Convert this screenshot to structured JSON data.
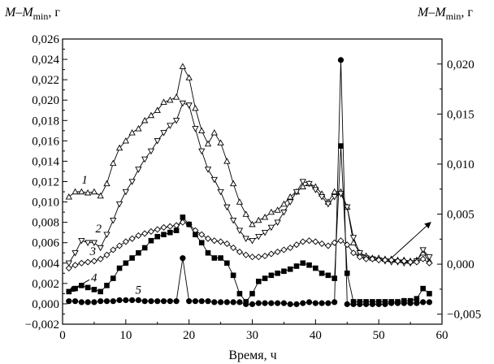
{
  "chart_data": {
    "type": "line",
    "xlabel": "Время, ч",
    "ylabel_left": {
      "main": "M–M",
      "sub": "min",
      "unit": ", г"
    },
    "ylabel_right": {
      "main": "M–M",
      "sub": "min",
      "unit": ", г"
    },
    "xlim": [
      0,
      60
    ],
    "ylim_left": [
      -0.002,
      0.026
    ],
    "ylim_right": [
      -0.006,
      0.0225
    ],
    "x_ticks": [
      "0",
      "10",
      "20",
      "30",
      "40",
      "50",
      "60"
    ],
    "y_ticks_left": [
      "−0,002",
      "0,000",
      "0,002",
      "0,004",
      "0,006",
      "0,008",
      "0,010",
      "0,012",
      "0,014",
      "0,016",
      "0,018",
      "0,020",
      "0,022",
      "0,024",
      "0,026"
    ],
    "y_ticks_right": [
      "−0,005",
      "0,000",
      "0,005",
      "0,010",
      "0,015",
      "0,020"
    ],
    "grid": false,
    "legend": "numbered labels next to curves",
    "series": [
      {
        "name": "1",
        "marker": "triangle-up",
        "axis": "left",
        "x": [
          1,
          2,
          3,
          4,
          5,
          6,
          7,
          8,
          9,
          10,
          11,
          12,
          13,
          14,
          15,
          16,
          17,
          18,
          19,
          20,
          21,
          22,
          23,
          24,
          25,
          26,
          27,
          28,
          29,
          30,
          31,
          32,
          33,
          34,
          35,
          36,
          37,
          38,
          39,
          40,
          41,
          42,
          43,
          44,
          45,
          46,
          47,
          48,
          49,
          50,
          51,
          52,
          53,
          54,
          55,
          56,
          57,
          58
        ],
        "y": [
          0.0105,
          0.011,
          0.011,
          0.0109,
          0.011,
          0.0106,
          0.0118,
          0.0138,
          0.0153,
          0.016,
          0.0168,
          0.0172,
          0.018,
          0.0185,
          0.019,
          0.0198,
          0.02,
          0.0203,
          0.0233,
          0.0222,
          0.0192,
          0.017,
          0.0157,
          0.0168,
          0.0158,
          0.014,
          0.0118,
          0.01,
          0.0088,
          0.0078,
          0.0082,
          0.0085,
          0.009,
          0.0092,
          0.0098,
          0.0105,
          0.011,
          0.0115,
          0.0118,
          0.0115,
          0.0108,
          0.01,
          0.011,
          0.011,
          0.0095,
          0.006,
          0.005,
          0.0047,
          0.0045,
          0.0045,
          0.0044,
          0.0044,
          0.0043,
          0.0043,
          0.0042,
          0.0043,
          0.005,
          0.0042
        ]
      },
      {
        "name": "2",
        "marker": "triangle-down",
        "axis": "left",
        "x": [
          1,
          2,
          3,
          4,
          5,
          6,
          7,
          8,
          9,
          10,
          11,
          12,
          13,
          14,
          15,
          16,
          17,
          18,
          19,
          20,
          21,
          22,
          23,
          24,
          25,
          26,
          27,
          28,
          29,
          30,
          31,
          32,
          33,
          34,
          35,
          36,
          37,
          38,
          39,
          40,
          41,
          42,
          43,
          44,
          45,
          46,
          47,
          48,
          49,
          50,
          51,
          52,
          53,
          54,
          55,
          56,
          57,
          58
        ],
        "y": [
          0.004,
          0.005,
          0.0062,
          0.006,
          0.006,
          0.0055,
          0.0068,
          0.0082,
          0.0098,
          0.011,
          0.012,
          0.0132,
          0.0142,
          0.015,
          0.016,
          0.0168,
          0.0175,
          0.018,
          0.0197,
          0.0195,
          0.0172,
          0.015,
          0.0132,
          0.0122,
          0.011,
          0.0095,
          0.0082,
          0.0072,
          0.0064,
          0.0062,
          0.0066,
          0.007,
          0.0075,
          0.008,
          0.009,
          0.01,
          0.011,
          0.012,
          0.0118,
          0.0112,
          0.0105,
          0.0098,
          0.0105,
          0.0108,
          0.0095,
          0.0065,
          0.005,
          0.0045,
          0.0044,
          0.0043,
          0.0042,
          0.0041,
          0.0041,
          0.004,
          0.004,
          0.0042,
          0.0053,
          0.0046
        ]
      },
      {
        "name": "3",
        "marker": "diamond",
        "axis": "left",
        "x": [
          1,
          2,
          3,
          4,
          5,
          6,
          7,
          8,
          9,
          10,
          11,
          12,
          13,
          14,
          15,
          16,
          17,
          18,
          19,
          20,
          21,
          22,
          23,
          24,
          25,
          26,
          27,
          28,
          29,
          30,
          31,
          32,
          33,
          34,
          35,
          36,
          37,
          38,
          39,
          40,
          41,
          42,
          43,
          44,
          45,
          46,
          47,
          48,
          49,
          50,
          51,
          52,
          53,
          54,
          55,
          56,
          57,
          58
        ],
        "y": [
          0.0035,
          0.0038,
          0.004,
          0.0041,
          0.0042,
          0.0044,
          0.0048,
          0.0053,
          0.0057,
          0.0061,
          0.0064,
          0.0067,
          0.0069,
          0.0071,
          0.0073,
          0.0075,
          0.0076,
          0.0077,
          0.008,
          0.0078,
          0.0072,
          0.0068,
          0.0064,
          0.0062,
          0.0061,
          0.0059,
          0.0055,
          0.0051,
          0.0048,
          0.0046,
          0.0046,
          0.0047,
          0.0049,
          0.0051,
          0.0053,
          0.0055,
          0.0058,
          0.0061,
          0.0062,
          0.0061,
          0.0059,
          0.0057,
          0.006,
          0.0062,
          0.0058,
          0.005,
          0.0046,
          0.0044,
          0.0044,
          0.0043,
          0.0043,
          0.0043,
          0.0042,
          0.0042,
          0.0041,
          0.0041,
          0.0044,
          0.004
        ]
      },
      {
        "name": "4",
        "marker": "square-filled",
        "axis": "left",
        "x": [
          1,
          2,
          3,
          4,
          5,
          6,
          7,
          8,
          9,
          10,
          11,
          12,
          13,
          14,
          15,
          16,
          17,
          18,
          19,
          20,
          21,
          22,
          23,
          24,
          25,
          26,
          27,
          28,
          29,
          30,
          31,
          32,
          33,
          34,
          35,
          36,
          37,
          38,
          39,
          40,
          41,
          42,
          43,
          44,
          45,
          46,
          47,
          48,
          49,
          50,
          51,
          52,
          53,
          54,
          55,
          56,
          57,
          58
        ],
        "y": [
          0.0012,
          0.0015,
          0.0018,
          0.0016,
          0.0014,
          0.0012,
          0.0018,
          0.0025,
          0.0035,
          0.004,
          0.0045,
          0.005,
          0.0055,
          0.0062,
          0.0066,
          0.0068,
          0.007,
          0.0072,
          0.0085,
          0.0078,
          0.0068,
          0.006,
          0.005,
          0.0045,
          0.0045,
          0.004,
          0.0028,
          0.001,
          0.0002,
          0.001,
          0.0022,
          0.0025,
          0.0028,
          0.003,
          0.0032,
          0.0034,
          0.0037,
          0.004,
          0.0038,
          0.0035,
          0.003,
          0.0028,
          0.0025,
          0.0155,
          0.003,
          0.0002,
          0.0002,
          0.0002,
          0.0002,
          0.0002,
          0.0002,
          0.0002,
          0.0002,
          0.0003,
          0.0003,
          0.0005,
          0.0015,
          0.001
        ]
      },
      {
        "name": "5",
        "marker": "circle-filled",
        "axis": "right",
        "x": [
          1,
          2,
          3,
          4,
          5,
          6,
          7,
          8,
          9,
          10,
          11,
          12,
          13,
          14,
          15,
          16,
          17,
          18,
          19,
          20,
          21,
          22,
          23,
          24,
          25,
          26,
          27,
          28,
          29,
          30,
          31,
          32,
          33,
          34,
          35,
          36,
          37,
          38,
          39,
          40,
          41,
          42,
          43,
          44,
          45,
          46,
          47,
          48,
          49,
          50,
          51,
          52,
          53,
          54,
          55,
          56,
          57,
          58
        ],
        "y": [
          -0.0037,
          -0.0037,
          -0.0038,
          -0.0038,
          -0.0038,
          -0.0037,
          -0.0037,
          -0.0037,
          -0.0036,
          -0.0036,
          -0.0036,
          -0.0036,
          -0.0037,
          -0.0037,
          -0.0037,
          -0.0037,
          -0.0037,
          -0.0037,
          0.0006,
          -0.0037,
          -0.0037,
          -0.0037,
          -0.0037,
          -0.0038,
          -0.0038,
          -0.0038,
          -0.0038,
          -0.0038,
          -0.004,
          -0.004,
          -0.0039,
          -0.0039,
          -0.0039,
          -0.0039,
          -0.0039,
          -0.004,
          -0.004,
          -0.0039,
          -0.0038,
          -0.0039,
          -0.0039,
          -0.0039,
          -0.0038,
          0.0204,
          -0.004,
          -0.004,
          -0.004,
          -0.004,
          -0.004,
          -0.004,
          -0.004,
          -0.0039,
          -0.0039,
          -0.0039,
          -0.0039,
          -0.0039,
          -0.0038,
          -0.0038
        ]
      }
    ],
    "annotations": [
      {
        "label": "1",
        "x": 3,
        "y": 0.0118,
        "axis": "left",
        "arrow": false
      },
      {
        "label": "2",
        "x": 5.2,
        "y": 0.007,
        "axis": "left",
        "arrow": false
      },
      {
        "label": "3",
        "x": 4.3,
        "y": 0.0048,
        "axis": "left",
        "arrow": false
      },
      {
        "label": "4",
        "x": 4.5,
        "y": 0.0022,
        "axis": "left",
        "arrow": false,
        "arrow_to": {
          "x": 1,
          "y": 0.0012
        }
      },
      {
        "label": "5",
        "x": 11.5,
        "y": 0.001,
        "axis": "left",
        "arrow": false
      },
      {
        "label": "",
        "x": 52,
        "y": 0.0045,
        "axis": "left",
        "arrow": true,
        "arrow_to": {
          "x": 58.2,
          "y": 0.008
        }
      }
    ]
  }
}
